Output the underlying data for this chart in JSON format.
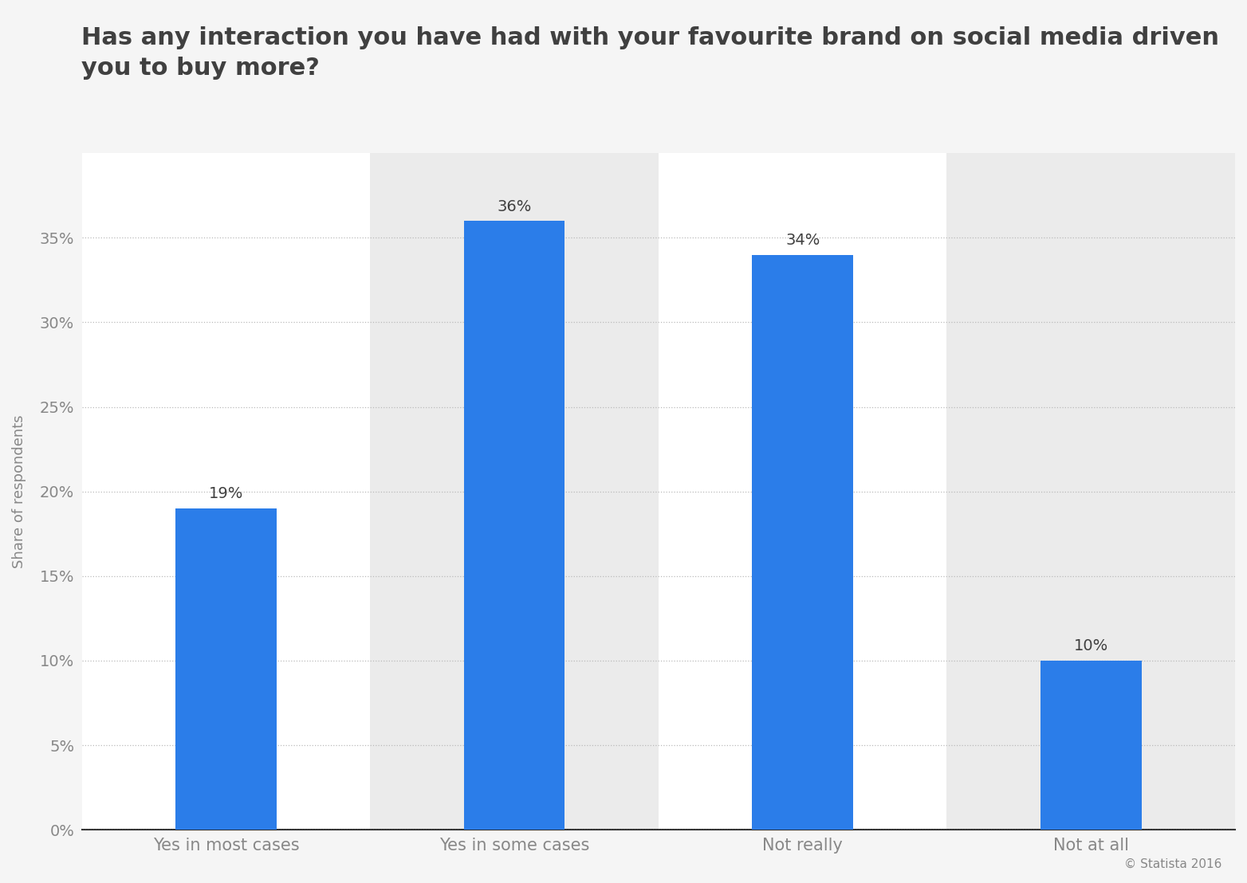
{
  "title": "Has any interaction you have had with your favourite brand on social media driven\nyou to buy more?",
  "categories": [
    "Yes in most cases",
    "Yes in some cases",
    "Not really",
    "Not at all"
  ],
  "values": [
    19,
    36,
    34,
    10
  ],
  "bar_color": "#2b7de9",
  "ylabel": "Share of respondents",
  "yticks": [
    0,
    5,
    10,
    15,
    20,
    25,
    30,
    35
  ],
  "ytick_labels": [
    "0%",
    "5%",
    "10%",
    "15%",
    "20%",
    "25%",
    "30%",
    "35%"
  ],
  "ylim": [
    0,
    40
  ],
  "background_color": "#f5f5f5",
  "plot_bg_color": "#ffffff",
  "band_color": "#ebebeb",
  "title_fontsize": 22,
  "label_fontsize": 15,
  "tick_fontsize": 14,
  "value_fontsize": 14,
  "ylabel_fontsize": 13,
  "copyright": "© Statista 2016",
  "grid_color": "#bbbbbb",
  "title_color": "#404040",
  "tick_color": "#888888",
  "bar_width": 0.35
}
